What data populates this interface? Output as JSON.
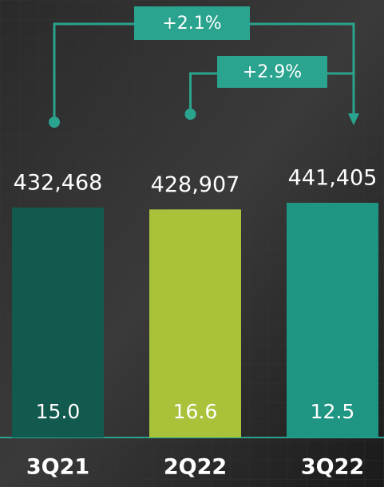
{
  "chart_data": {
    "type": "bar",
    "categories": [
      "3Q21",
      "2Q22",
      "3Q22"
    ],
    "values": [
      432468,
      428907,
      441405
    ],
    "value_labels": [
      "432,468",
      "428,907",
      "441,405"
    ],
    "colors": [
      "#135a4e",
      "#a8c23a",
      "#1f9583"
    ],
    "inner_values": [
      15,
      16.6,
      12.5
    ],
    "inner_labels": [
      "15.0",
      "16.6",
      "12.5"
    ],
    "annotations": [
      {
        "text": "+2.1%",
        "value": 2.1,
        "from": "3Q21",
        "to": "3Q22"
      },
      {
        "text": "+2.9%",
        "value": 2.9,
        "from": "2Q22",
        "to": "3Q22"
      }
    ]
  }
}
